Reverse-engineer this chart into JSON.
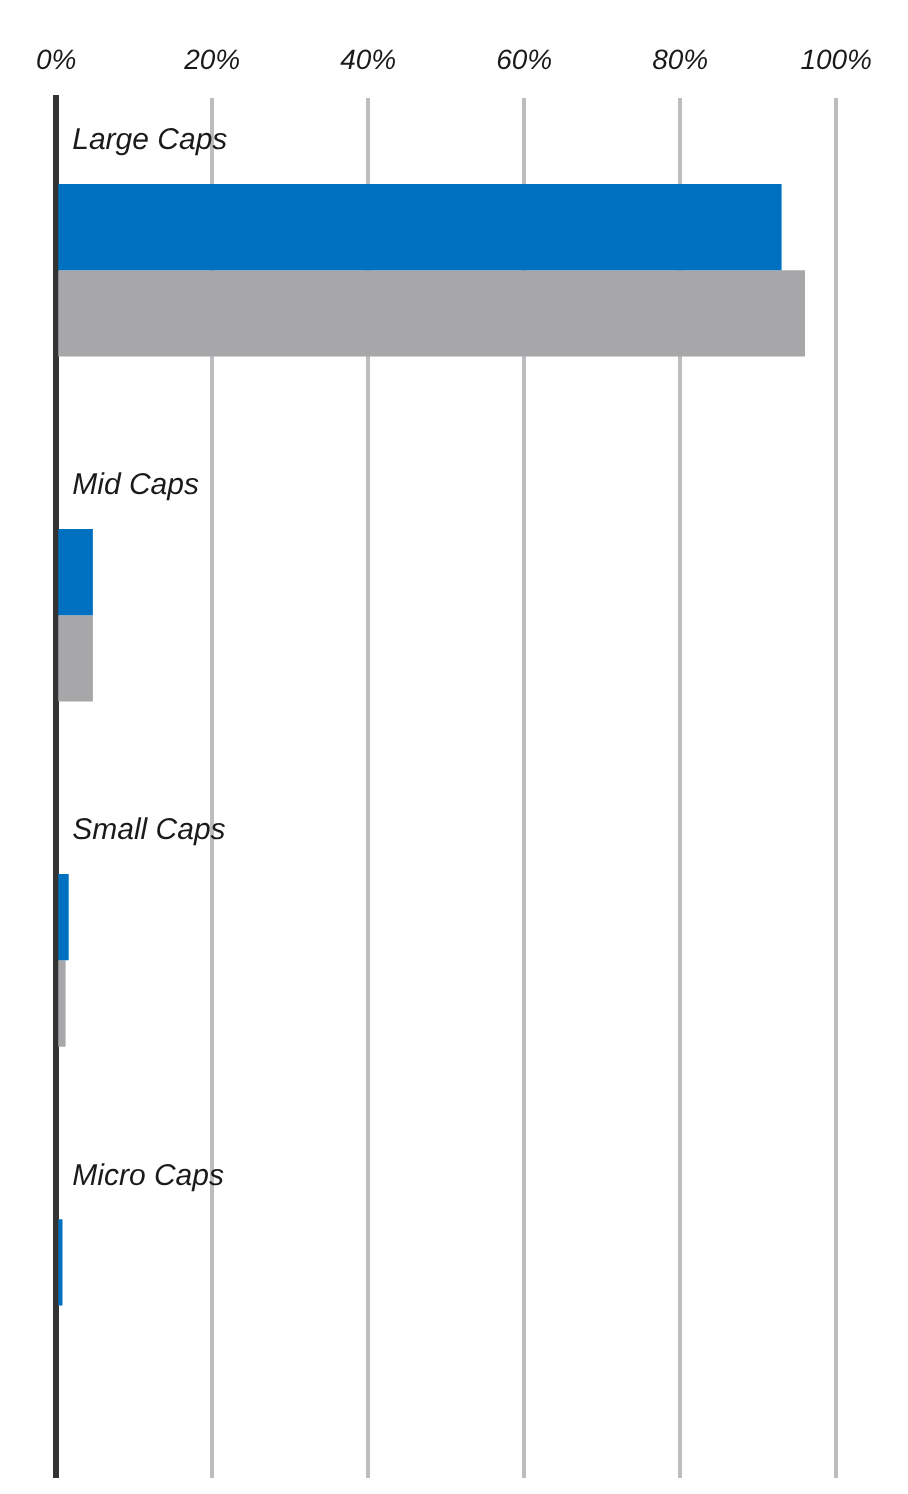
{
  "chart_data": {
    "type": "bar",
    "orientation": "horizontal",
    "categories": [
      "Large Caps",
      "Mid Caps",
      "Small Caps",
      "Micro Caps"
    ],
    "series": [
      {
        "color": "#0070c0",
        "values": [
          93,
          4.7,
          1.6,
          0.8
        ]
      },
      {
        "color": "#a7a7aa",
        "values": [
          96,
          4.7,
          1.2,
          0
        ]
      }
    ],
    "xlim": [
      0,
      100
    ],
    "xticks": [
      {
        "value": 0,
        "label": "0%"
      },
      {
        "value": 20,
        "label": "20%"
      },
      {
        "value": 40,
        "label": "40%"
      },
      {
        "value": 60,
        "label": "60%"
      },
      {
        "value": 80,
        "label": "80%"
      },
      {
        "value": 100,
        "label": "100%"
      }
    ],
    "grid": "x",
    "legend": false
  }
}
